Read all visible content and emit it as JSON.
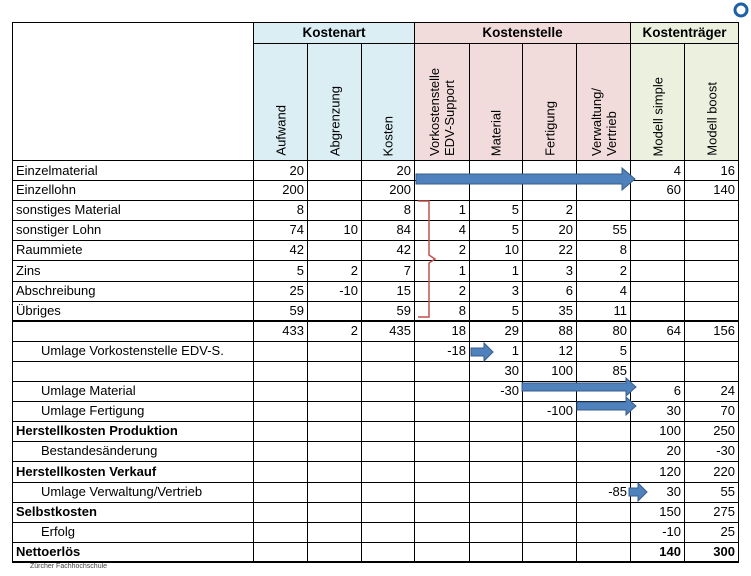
{
  "header": {
    "groups": [
      "Kostenart",
      "Kostenstelle",
      "Kostenträger"
    ],
    "columns": [
      "Aufwand",
      "Abgrenzung",
      "Kosten",
      "Vorkostenstelle EDV-Support",
      "Material",
      "Fertigung",
      "Verwaltung/ Vertrieb",
      "Modell simple",
      "Modell boost"
    ]
  },
  "table": {
    "rows": [
      [
        "Einzelmaterial",
        20,
        null,
        20,
        null,
        null,
        null,
        null,
        4,
        16
      ],
      [
        "Einzellohn",
        200,
        null,
        200,
        null,
        null,
        null,
        null,
        60,
        140
      ],
      [
        "sonstiges Material",
        8,
        null,
        8,
        1,
        5,
        2,
        null,
        null,
        null
      ],
      [
        "sonstiger Lohn",
        74,
        10,
        84,
        4,
        5,
        20,
        55,
        null,
        null
      ],
      [
        "Raummiete",
        42,
        null,
        42,
        2,
        10,
        22,
        8,
        null,
        null
      ],
      [
        "Zins",
        5,
        2,
        7,
        1,
        1,
        3,
        2,
        null,
        null
      ],
      [
        "Abschreibung",
        25,
        -10,
        15,
        2,
        3,
        6,
        4,
        null,
        null
      ],
      [
        "Übriges",
        59,
        null,
        59,
        8,
        5,
        35,
        11,
        null,
        null
      ],
      [
        null,
        433,
        2,
        435,
        18,
        29,
        88,
        80,
        64,
        156
      ],
      [
        "Umlage Vorkostenstelle EDV-S.",
        null,
        null,
        null,
        -18,
        1,
        12,
        5,
        null,
        null
      ],
      [
        null,
        null,
        null,
        null,
        null,
        30,
        100,
        85,
        null,
        null
      ],
      [
        "Umlage Material",
        null,
        null,
        null,
        null,
        -30,
        null,
        null,
        6,
        24
      ],
      [
        "Umlage Fertigung",
        null,
        null,
        null,
        null,
        null,
        -100,
        null,
        30,
        70
      ],
      [
        "Herstellkosten Produktion",
        null,
        null,
        null,
        null,
        null,
        null,
        null,
        100,
        250
      ],
      [
        "Bestandesänderung",
        null,
        null,
        null,
        null,
        null,
        null,
        null,
        20,
        -30
      ],
      [
        "Herstellkosten Verkauf",
        null,
        null,
        null,
        null,
        null,
        null,
        null,
        120,
        220
      ],
      [
        "Umlage Verwaltung/Vertrieb",
        null,
        null,
        null,
        null,
        null,
        null,
        -85,
        30,
        55
      ],
      [
        "Selbstkosten",
        null,
        null,
        null,
        null,
        null,
        null,
        null,
        150,
        275
      ],
      [
        "Erfolg",
        null,
        null,
        null,
        null,
        null,
        null,
        null,
        -10,
        25
      ],
      [
        "Nettoerlös",
        null,
        null,
        null,
        null,
        null,
        null,
        null,
        140,
        300
      ]
    ]
  },
  "footer": "Zürcher Fachhochschule"
}
